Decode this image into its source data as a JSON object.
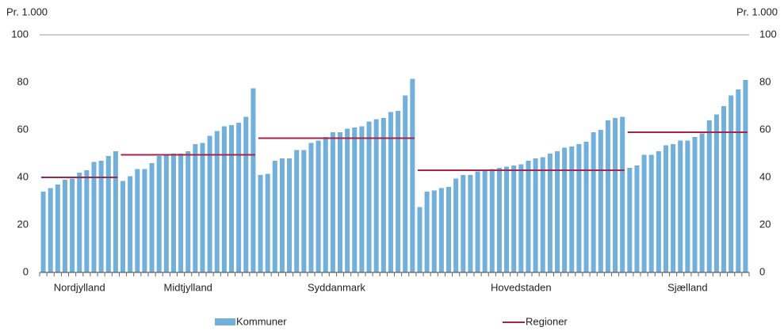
{
  "chart_data": {
    "type": "bar",
    "ylabel": "Pr. 1.000",
    "y2label": "Pr. 1.000",
    "categories": [
      "Nordjylland",
      "Midtjylland",
      "Syddanmark",
      "Hovedstaden",
      "Sjælland"
    ],
    "series": [
      {
        "name": "Kommuner",
        "color": "#72b0dc",
        "values": [
          [
            34,
            35.5,
            37,
            39,
            39.5,
            42,
            43,
            46.5,
            47,
            49,
            51
          ],
          [
            38.5,
            40.5,
            43.5,
            43.5,
            46,
            49,
            49.5,
            50,
            50,
            51,
            54,
            54.5,
            57.5,
            59.5,
            61.5,
            62,
            63,
            65.5,
            77.5
          ],
          [
            41,
            41.5,
            47,
            48,
            48,
            51.5,
            51.5,
            54.5,
            55.5,
            57,
            59,
            59,
            60.5,
            61,
            61.5,
            63.5,
            64.5,
            65,
            67.5,
            68,
            74.5,
            81.5
          ],
          [
            27.5,
            34,
            34.5,
            35.5,
            36,
            39.5,
            41,
            41,
            42.5,
            43,
            43.5,
            44,
            44.5,
            45,
            45.5,
            47,
            48,
            48.5,
            50,
            51,
            52.5,
            53,
            54,
            55,
            59,
            60,
            64,
            65,
            65.5
          ],
          [
            44,
            45,
            49.5,
            49.5,
            51,
            53.5,
            54,
            55.5,
            55.5,
            57,
            58.5,
            64,
            66.5,
            70,
            74.5,
            77,
            81
          ]
        ]
      },
      {
        "name": "Regioner",
        "color": "#a4254a",
        "values": [
          40,
          49.5,
          56.5,
          43,
          59
        ]
      }
    ],
    "ylim": [
      0,
      100
    ],
    "yticks": [
      0,
      20,
      40,
      60,
      80,
      100
    ],
    "y2lim": [
      0,
      100
    ],
    "y2ticks": [
      0,
      20,
      40,
      60,
      80,
      100
    ],
    "grid": false
  }
}
